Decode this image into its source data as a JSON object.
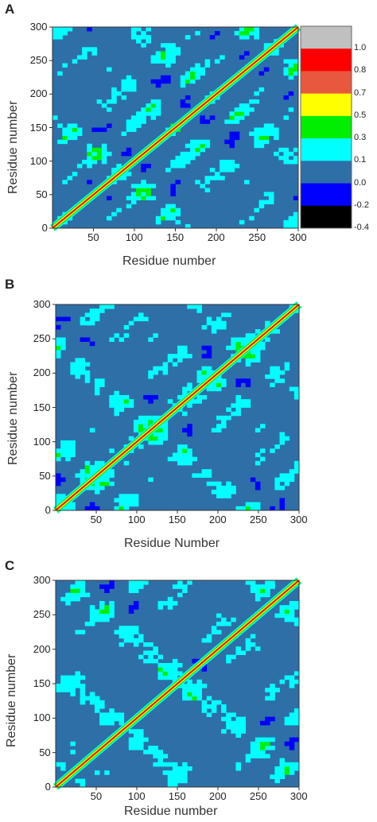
{
  "chart_data": [
    {
      "type": "heatmap",
      "panel_label": "A",
      "xlabel": "Residue number",
      "ylabel": "Residue number",
      "xlim": [
        0,
        300
      ],
      "ylim": [
        0,
        300
      ],
      "xticks": [
        "50",
        "100",
        "150",
        "200",
        "250",
        "300"
      ],
      "yticks": [
        "0",
        "50",
        "100",
        "150",
        "200",
        "250",
        "300"
      ],
      "diagonal_value": 1.0,
      "legend": {
        "placement": "right",
        "entries": [
          {
            "label": "1.0",
            "color": "#c0c0c0"
          },
          {
            "label": "0.8",
            "color": "#ff0000"
          },
          {
            "label": "0.7",
            "color": "#e8583f"
          },
          {
            "label": "0.5",
            "color": "#ffff00"
          },
          {
            "label": "0.3",
            "color": "#00ee00"
          },
          {
            "label": "0.1",
            "color": "#00ffff"
          },
          {
            "label": "0.0",
            "color": "#2e6fa8"
          },
          {
            "label": "-0.2",
            "color": "#0000ff"
          },
          {
            "label": "-0.4",
            "color": "#000000"
          }
        ]
      }
    },
    {
      "type": "heatmap",
      "panel_label": "B",
      "xlabel": "Residue Number",
      "ylabel": "Residue number",
      "xlim": [
        0,
        300
      ],
      "ylim": [
        0,
        300
      ],
      "xticks": [
        "50",
        "100",
        "150",
        "200",
        "250",
        "300"
      ],
      "yticks": [
        "0",
        "50",
        "100",
        "150",
        "200",
        "250",
        "300"
      ],
      "diagonal_value": 1.0
    },
    {
      "type": "heatmap",
      "panel_label": "C",
      "xlabel": "Residue number",
      "ylabel": "Residue number",
      "xlim": [
        0,
        300
      ],
      "ylim": [
        0,
        300
      ],
      "xticks": [
        "50",
        "100",
        "150",
        "200",
        "250",
        "300"
      ],
      "yticks": [
        "0",
        "50",
        "100",
        "150",
        "200",
        "250",
        "300"
      ],
      "diagonal_value": 1.0
    }
  ]
}
